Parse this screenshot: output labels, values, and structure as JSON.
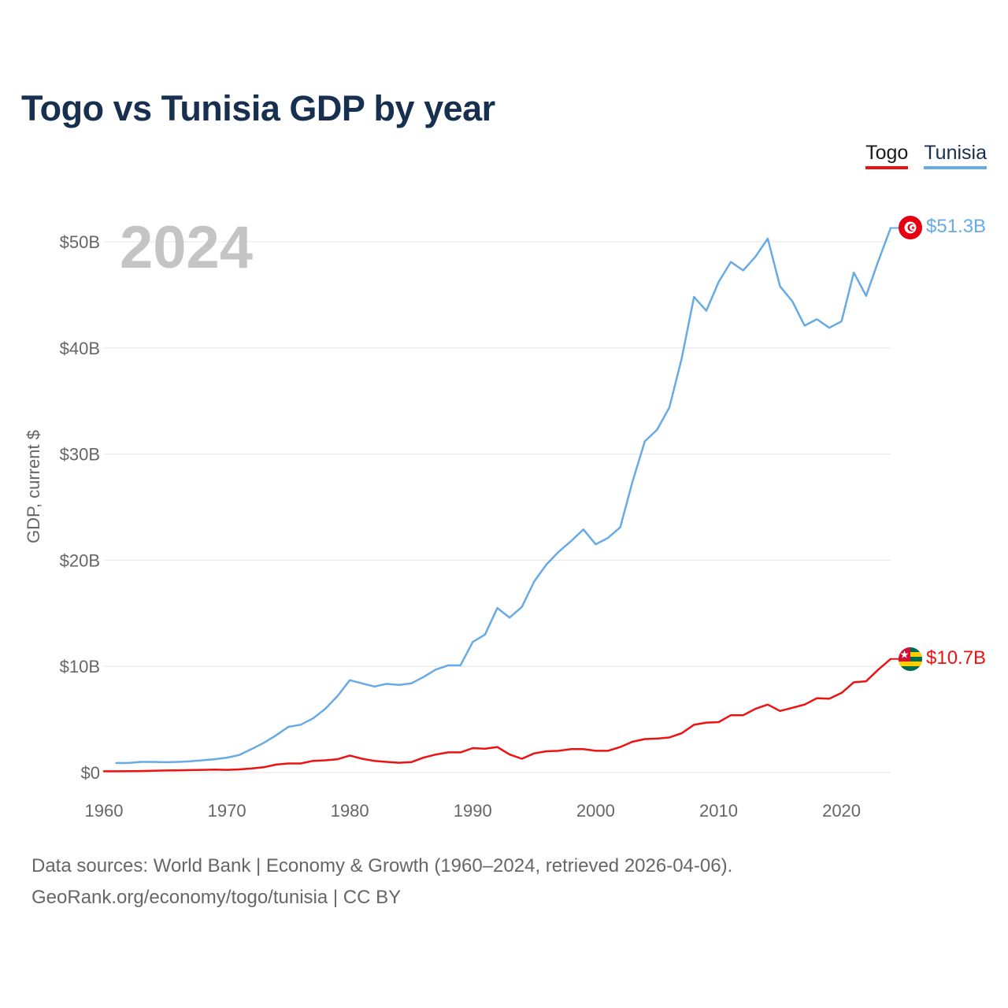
{
  "title": "Togo vs Tunisia GDP by year",
  "legend": {
    "togo": "Togo",
    "tunisia": "Tunisia"
  },
  "year_watermark": "2024",
  "footer": {
    "line1": "Data sources: World Bank | Economy & Growth (1960–2024, retrieved 2026-04-06).",
    "line2": "GeoRank.org/economy/togo/tunisia | CC BY"
  },
  "colors": {
    "togo": "#ee1111",
    "tunisia": "#66aae6",
    "title": "#17304f",
    "axis_text": "#666666",
    "grid": "#e6e6e6",
    "watermark": "#c4c4c4"
  },
  "chart_data": {
    "type": "line",
    "title": "Togo vs Tunisia GDP by year",
    "xlabel": "",
    "ylabel": "GDP, current $",
    "xlim": [
      1960,
      2024
    ],
    "ylim": [
      0,
      50000000000
    ],
    "x_ticks": [
      1960,
      1970,
      1980,
      1990,
      2000,
      2010,
      2020
    ],
    "x_tick_labels": [
      "1960",
      "1970",
      "1980",
      "1990",
      "2000",
      "2010",
      "2020"
    ],
    "y_ticks": [
      0,
      10000000000,
      20000000000,
      30000000000,
      40000000000,
      50000000000
    ],
    "y_tick_labels": [
      "$0",
      "$10B",
      "$20B",
      "$30B",
      "$40B",
      "$50B"
    ],
    "grid": true,
    "legend_position": "top-right",
    "series": [
      {
        "name": "Togo",
        "color": "#ee1111",
        "end_label": "$10.7B",
        "x": [
          1960,
          1961,
          1962,
          1963,
          1964,
          1965,
          1966,
          1967,
          1968,
          1969,
          1970,
          1971,
          1972,
          1973,
          1974,
          1975,
          1976,
          1977,
          1978,
          1979,
          1980,
          1981,
          1982,
          1983,
          1984,
          1985,
          1986,
          1987,
          1988,
          1989,
          1990,
          1991,
          1992,
          1993,
          1994,
          1995,
          1996,
          1997,
          1998,
          1999,
          2000,
          2001,
          2002,
          2003,
          2004,
          2005,
          2006,
          2007,
          2008,
          2009,
          2010,
          2011,
          2012,
          2013,
          2014,
          2015,
          2016,
          2017,
          2018,
          2019,
          2020,
          2021,
          2022,
          2023,
          2024
        ],
        "values": [
          0.12,
          0.12,
          0.13,
          0.14,
          0.16,
          0.19,
          0.21,
          0.23,
          0.25,
          0.28,
          0.25,
          0.3,
          0.38,
          0.5,
          0.75,
          0.85,
          0.85,
          1.1,
          1.15,
          1.25,
          1.6,
          1.3,
          1.1,
          1.0,
          0.92,
          0.98,
          1.4,
          1.7,
          1.9,
          1.9,
          2.3,
          2.25,
          2.4,
          1.7,
          1.3,
          1.8,
          2.0,
          2.05,
          2.2,
          2.2,
          2.05,
          2.05,
          2.4,
          2.9,
          3.15,
          3.2,
          3.3,
          3.7,
          4.5,
          4.7,
          4.75,
          5.4,
          5.4,
          6.0,
          6.4,
          5.8,
          6.1,
          6.4,
          7.0,
          6.95,
          7.5,
          8.5,
          8.6,
          9.7,
          10.7
        ]
      },
      {
        "name": "Tunisia",
        "color": "#66aae6",
        "end_label": "$51.3B",
        "x": [
          1961,
          1962,
          1963,
          1964,
          1965,
          1966,
          1967,
          1968,
          1969,
          1970,
          1971,
          1972,
          1973,
          1974,
          1975,
          1976,
          1977,
          1978,
          1979,
          1980,
          1981,
          1982,
          1983,
          1984,
          1985,
          1986,
          1987,
          1988,
          1989,
          1990,
          1991,
          1992,
          1993,
          1994,
          1995,
          1996,
          1997,
          1998,
          1999,
          2000,
          2001,
          2002,
          2003,
          2004,
          2005,
          2006,
          2007,
          2008,
          2009,
          2010,
          2011,
          2012,
          2013,
          2014,
          2015,
          2016,
          2017,
          2018,
          2019,
          2020,
          2021,
          2022,
          2023,
          2024
        ],
        "values": [
          0.9,
          0.9,
          1.0,
          1.0,
          0.97,
          1.0,
          1.05,
          1.15,
          1.25,
          1.4,
          1.65,
          2.2,
          2.8,
          3.5,
          4.3,
          4.5,
          5.1,
          6.0,
          7.2,
          8.7,
          8.4,
          8.1,
          8.35,
          8.25,
          8.4,
          9.0,
          9.7,
          10.1,
          10.1,
          12.3,
          13.0,
          15.5,
          14.6,
          15.6,
          18.0,
          19.6,
          20.8,
          21.8,
          22.9,
          21.5,
          22.1,
          23.1,
          27.4,
          31.2,
          32.3,
          34.4,
          39.0,
          44.8,
          43.5,
          46.2,
          48.1,
          47.3,
          48.6,
          50.3,
          45.8,
          44.4,
          42.1,
          42.7,
          41.9,
          42.5,
          47.1,
          44.9,
          48.2,
          51.3
        ]
      }
    ]
  }
}
